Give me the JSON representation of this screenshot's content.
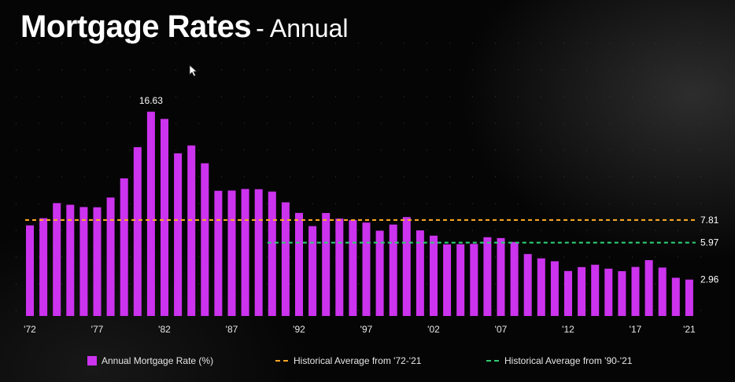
{
  "header": {
    "title": "Mortgage Rates",
    "subtitle": "- Annual"
  },
  "colors": {
    "bar": "#cc33ee",
    "avg_72_21": "#f5a623",
    "avg_90_21": "#2ecc71",
    "background": "#000000"
  },
  "icons": {
    "cursor": "mouse-pointer-icon"
  },
  "legend": {
    "bars": "Annual Mortgage Rate (%)",
    "avg_72_21": "Historical Average from '72-'21",
    "avg_90_21": "Historical Average from '90-'21"
  },
  "chart_data": {
    "type": "bar",
    "title": "Mortgage Rates - Annual",
    "xlabel": "",
    "ylabel": "",
    "ylim": [
      0,
      17.5
    ],
    "grid": true,
    "legend_position": "bottom",
    "categories": [
      "1972",
      "1973",
      "1974",
      "1975",
      "1976",
      "1977",
      "1978",
      "1979",
      "1980",
      "1981",
      "1982",
      "1983",
      "1984",
      "1985",
      "1986",
      "1987",
      "1988",
      "1989",
      "1990",
      "1991",
      "1992",
      "1993",
      "1994",
      "1995",
      "1996",
      "1997",
      "1998",
      "1999",
      "2000",
      "2001",
      "2002",
      "2003",
      "2004",
      "2005",
      "2006",
      "2007",
      "2008",
      "2009",
      "2010",
      "2011",
      "2012",
      "2013",
      "2014",
      "2015",
      "2016",
      "2017",
      "2018",
      "2019",
      "2020",
      "2021"
    ],
    "tick_labels": [
      "'72",
      "'77",
      "'82",
      "'87",
      "'92",
      "'97",
      "'02",
      "'07",
      "'12",
      "'17",
      "'21"
    ],
    "tick_categories": [
      "1972",
      "1977",
      "1982",
      "1987",
      "1992",
      "1997",
      "2002",
      "2007",
      "2012",
      "2017",
      "2021"
    ],
    "series": [
      {
        "name": "Annual Mortgage Rate (%)",
        "values": [
          7.38,
          7.96,
          9.19,
          9.05,
          8.87,
          8.85,
          9.64,
          11.2,
          13.74,
          16.63,
          16.04,
          13.24,
          13.88,
          12.43,
          10.19,
          10.21,
          10.34,
          10.32,
          10.13,
          9.25,
          8.39,
          7.31,
          8.38,
          7.93,
          7.81,
          7.6,
          6.94,
          7.44,
          8.05,
          6.97,
          6.54,
          5.83,
          5.84,
          5.87,
          6.41,
          6.34,
          6.03,
          5.04,
          4.69,
          4.45,
          3.66,
          3.98,
          4.17,
          3.85,
          3.65,
          3.99,
          4.54,
          3.94,
          3.11,
          2.96
        ]
      }
    ],
    "reference_lines": [
      {
        "name": "Historical Average from '72-'21",
        "value": 7.81,
        "label": "7.81",
        "start": "1972",
        "end": "2021"
      },
      {
        "name": "Historical Average from '90-'21",
        "value": 5.97,
        "label": "5.97",
        "start": "1990",
        "end": "2021"
      }
    ],
    "annotations": [
      {
        "category": "1981",
        "text": "16.63"
      },
      {
        "category": "2021",
        "text": "2.96"
      }
    ]
  }
}
